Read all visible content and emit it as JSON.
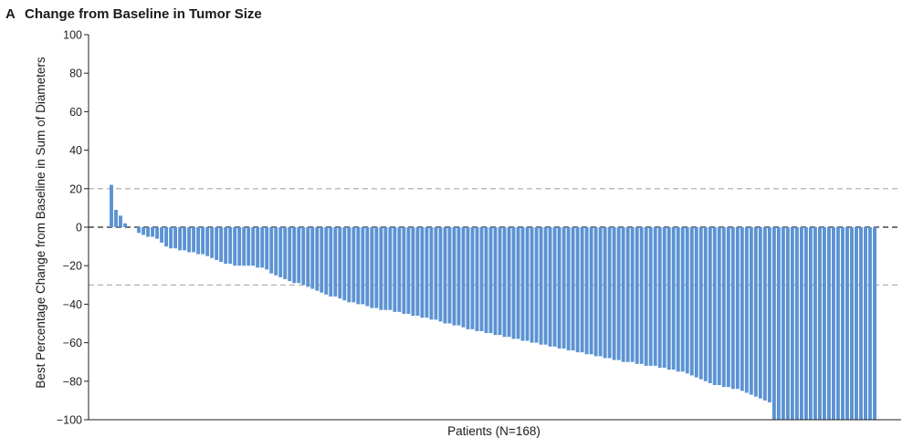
{
  "chart_data": {
    "type": "bar",
    "panel_letter": "A",
    "title": "Change from Baseline in Tumor Size",
    "xlabel": "Patients (N=168)",
    "ylabel": "Best Percentage Change from Baseline in Sum of Diameters",
    "ylim": [
      -100,
      100
    ],
    "yticks": [
      100,
      80,
      60,
      40,
      20,
      0,
      -20,
      -40,
      -60,
      -80,
      -100
    ],
    "ytick_labels": [
      "100",
      "80",
      "60",
      "40",
      "20",
      "0",
      "−20",
      "−40",
      "−60",
      "−80",
      "−100"
    ],
    "reference_lines": [
      {
        "y": 20,
        "style": "dashed",
        "color": "#aaaaaa"
      },
      {
        "y": 0,
        "style": "dashed",
        "color": "#222222"
      },
      {
        "y": -30,
        "style": "dashed",
        "color": "#aaaaaa"
      }
    ],
    "bar_color": "#5b93d3",
    "grid": false,
    "values": [
      22,
      9,
      6,
      2,
      0,
      0,
      -3,
      -4,
      -5,
      -5,
      -6,
      -8,
      -10,
      -11,
      -11,
      -12,
      -12,
      -13,
      -13,
      -14,
      -14,
      -15,
      -16,
      -17,
      -18,
      -19,
      -19,
      -20,
      -20,
      -20,
      -20,
      -20,
      -21,
      -21,
      -22,
      -24,
      -25,
      -26,
      -27,
      -28,
      -29,
      -29,
      -30,
      -31,
      -32,
      -33,
      -34,
      -35,
      -36,
      -36,
      -37,
      -38,
      -39,
      -39,
      -40,
      -40,
      -41,
      -42,
      -42,
      -43,
      -43,
      -43,
      -44,
      -44,
      -45,
      -45,
      -46,
      -46,
      -47,
      -47,
      -48,
      -48,
      -49,
      -50,
      -50,
      -51,
      -51,
      -52,
      -53,
      -53,
      -54,
      -54,
      -55,
      -55,
      -56,
      -56,
      -57,
      -57,
      -58,
      -58,
      -59,
      -59,
      -60,
      -60,
      -61,
      -61,
      -62,
      -62,
      -63,
      -63,
      -64,
      -64,
      -65,
      -65,
      -66,
      -66,
      -67,
      -67,
      -68,
      -68,
      -69,
      -69,
      -70,
      -70,
      -70,
      -71,
      -71,
      -72,
      -72,
      -72,
      -73,
      -73,
      -74,
      -74,
      -75,
      -75,
      -76,
      -77,
      -78,
      -79,
      -80,
      -81,
      -82,
      -82,
      -83,
      -83,
      -84,
      -84,
      -85,
      -86,
      -87,
      -88,
      -89,
      -90,
      -91,
      -100,
      -100,
      -100,
      -100,
      -100,
      -100,
      -100,
      -100,
      -100,
      -100,
      -100,
      -100,
      -100,
      -100,
      -100,
      -100,
      -100,
      -100,
      -100,
      -100,
      -100,
      -100,
      -100
    ]
  }
}
